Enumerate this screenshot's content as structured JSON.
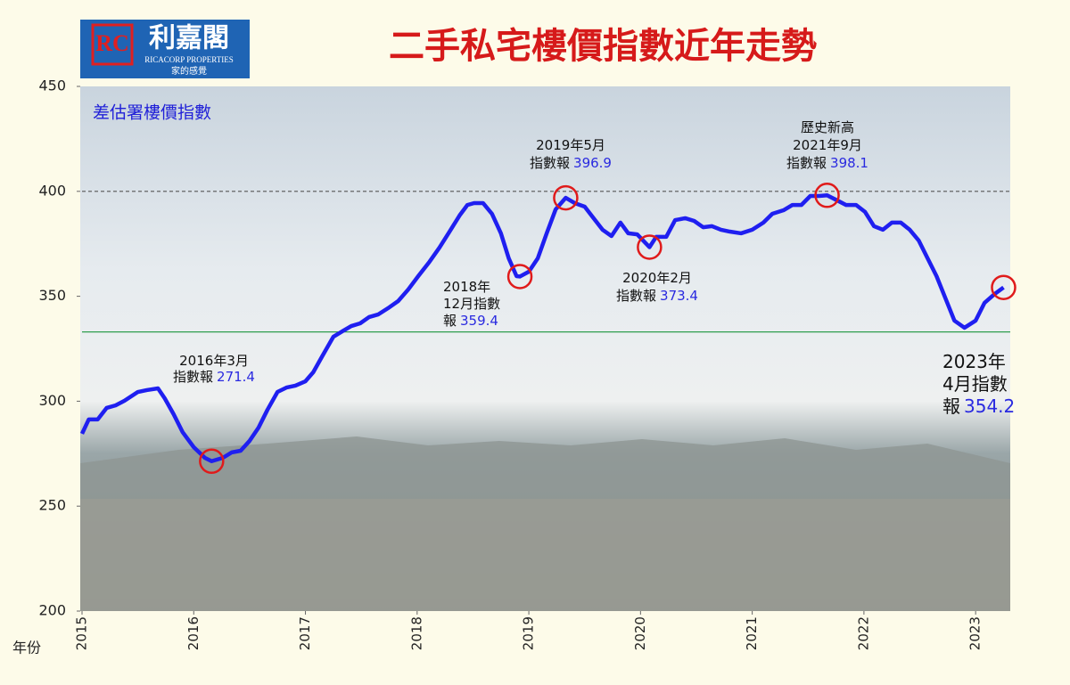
{
  "chart_data": {
    "type": "line",
    "title": "二手私宅樓價指數近年走勢",
    "logo": {
      "name": "利嘉閣",
      "english": "RICACORP PROPERTIES",
      "slogan": "家的感覺"
    },
    "x_label": "年份",
    "x": [
      2015.0,
      2015.06,
      2015.14,
      2015.22,
      2015.3,
      2015.38,
      2015.5,
      2015.58,
      2015.68,
      2015.74,
      2015.82,
      2015.9,
      2016.0,
      2016.1,
      2016.16,
      2016.26,
      2016.34,
      2016.42,
      2016.5,
      2016.58,
      2016.66,
      2016.75,
      2016.83,
      2016.91,
      2017.0,
      2017.07,
      2017.15,
      2017.25,
      2017.33,
      2017.41,
      2017.49,
      2017.57,
      2017.65,
      2017.75,
      2017.83,
      2017.92,
      2018.01,
      2018.11,
      2018.2,
      2018.29,
      2018.38,
      2018.45,
      2018.51,
      2018.59,
      2018.67,
      2018.75,
      2018.82,
      2018.89,
      2018.92,
      2019.0,
      2019.08,
      2019.16,
      2019.24,
      2019.33,
      2019.41,
      2019.5,
      2019.58,
      2019.66,
      2019.74,
      2019.82,
      2019.89,
      2019.97,
      2020.08,
      2020.14,
      2020.23,
      2020.31,
      2020.4,
      2020.48,
      2020.56,
      2020.64,
      2020.72,
      2020.8,
      2020.9,
      2021.0,
      2021.1,
      2021.18,
      2021.28,
      2021.36,
      2021.44,
      2021.52,
      2021.6,
      2021.67,
      2021.76,
      2021.84,
      2021.93,
      2022.01,
      2022.09,
      2022.17,
      2022.25,
      2022.33,
      2022.41,
      2022.49,
      2022.57,
      2022.65,
      2022.73,
      2022.81,
      2022.9,
      2023.0,
      2023.08,
      2023.17,
      2023.25
    ],
    "series": [
      {
        "name": "差估署樓價指數",
        "color": "#1f1ff0",
        "values": [
          284.5,
          291.3,
          291.3,
          296.8,
          298,
          300.2,
          304.4,
          305.3,
          306.1,
          301.4,
          293.8,
          285.3,
          278.1,
          273,
          271.4,
          273,
          275.6,
          276.4,
          281.1,
          287.4,
          295.9,
          304.4,
          306.5,
          307.4,
          309.5,
          313.8,
          321.4,
          330.7,
          333.3,
          335.8,
          337.1,
          340.1,
          341.3,
          344.7,
          347.7,
          353.2,
          359.6,
          366.4,
          373.2,
          380.8,
          388.5,
          393.5,
          394.4,
          394.4,
          389.3,
          380,
          368.1,
          359.6,
          359.4,
          361.7,
          368.1,
          380,
          391.4,
          396.9,
          394.4,
          392.7,
          387.2,
          381.7,
          378.7,
          385.1,
          380,
          379.5,
          373.4,
          378.3,
          378.3,
          386.3,
          387.2,
          385.9,
          382.9,
          383.4,
          381.7,
          380.8,
          380,
          381.7,
          385.1,
          389.3,
          391,
          393.5,
          393.5,
          397.8,
          397.8,
          398.1,
          395.7,
          393.5,
          393.5,
          390.2,
          383.4,
          381.7,
          385.1,
          385.1,
          381.7,
          376.6,
          368.1,
          359.6,
          349,
          338.4,
          335,
          338.4,
          346.9,
          351.1,
          354.2
        ]
      }
    ],
    "annotations": [
      {
        "x": 2016.16,
        "value": 271.4,
        "text": [
          "2016年3月",
          "指數報"
        ],
        "value_label": "271.4"
      },
      {
        "x": 2018.92,
        "value": 359.4,
        "text": [
          "2018年",
          "12月指數",
          "報"
        ],
        "value_label": "359.4"
      },
      {
        "x": 2019.33,
        "value": 396.9,
        "text": [
          "2019年5月",
          "指數報"
        ],
        "value_label": "396.9"
      },
      {
        "x": 2020.08,
        "value": 373.4,
        "text": [
          "2020年2月",
          "指數報"
        ],
        "value_label": "373.4"
      },
      {
        "x": 2021.67,
        "value": 398.1,
        "text": [
          "歷史新高",
          "2021年9月",
          "指數報"
        ],
        "value_label": "398.1"
      },
      {
        "x": 2023.25,
        "value": 354.2,
        "text": [
          "2023年",
          "4月指數",
          "報"
        ],
        "value_label": "354.2"
      }
    ],
    "annotation_color": "#e01b1b",
    "value_label_color": "#2a2ae0",
    "hlines": [
      {
        "value": 400,
        "color": "#555555",
        "dashed": true
      },
      {
        "value": 333,
        "color": "#2f9e4f",
        "dashed": false
      }
    ],
    "xlim": [
      2015,
      2023.31
    ],
    "xticks": [
      2015,
      2016,
      2017,
      2018,
      2019,
      2020,
      2021,
      2022,
      2023
    ],
    "ylim": [
      200,
      450
    ],
    "yticks": [
      200,
      250,
      300,
      350,
      400,
      450
    ],
    "grid": false
  }
}
